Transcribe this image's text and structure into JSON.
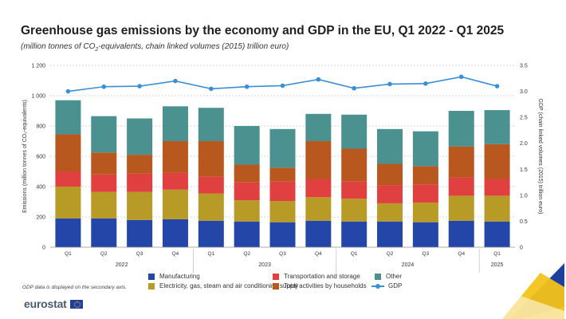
{
  "title": "Greenhouse gas emissions by the economy and GDP in the EU, Q1 2022 - Q1 2025",
  "subtitle_prefix": "(million tonnes of CO",
  "subtitle_sub": "2",
  "subtitle_suffix": "-equivalents, chain linked volumes (2015) trillion euro)",
  "note": "GDP data is displayed on the secondary axis.",
  "logo": "eurostat",
  "colors": {
    "Manufacturing": "#2446a8",
    "Electricity": "#b89a27",
    "Transportation": "#e04040",
    "Households": "#b8581f",
    "Other": "#4a9190",
    "GDP": "#3b8fd6"
  },
  "legend": {
    "manufacturing": "Manufacturing",
    "electricity": "Electricity, gas, steam and air conditioning supply",
    "transportation": "Transportation and storage",
    "households": "Total activities by households",
    "other": "Other",
    "gdp": "GDP"
  },
  "chart_data": {
    "type": "bar",
    "stacked": true,
    "categories": [
      "Q1",
      "Q2",
      "Q3",
      "Q4",
      "Q1",
      "Q2",
      "Q3",
      "Q4",
      "Q1",
      "Q2",
      "Q3",
      "Q4",
      "Q1"
    ],
    "years": [
      {
        "label": "2022",
        "from": 0,
        "to": 3
      },
      {
        "label": "2023",
        "from": 4,
        "to": 7
      },
      {
        "label": "2024",
        "from": 8,
        "to": 11
      },
      {
        "label": "2025",
        "from": 12,
        "to": 12
      }
    ],
    "series": [
      {
        "name": "Manufacturing",
        "values": [
          190,
          190,
          180,
          185,
          175,
          170,
          165,
          175,
          170,
          170,
          165,
          175,
          170
        ]
      },
      {
        "name": "Electricity, gas, steam and air conditioning supply",
        "values": [
          210,
          175,
          185,
          195,
          180,
          140,
          140,
          155,
          150,
          120,
          130,
          165,
          170
        ]
      },
      {
        "name": "Transportation and storage",
        "values": [
          100,
          115,
          120,
          110,
          110,
          120,
          130,
          120,
          115,
          120,
          120,
          120,
          110
        ]
      },
      {
        "name": "Total activities by households",
        "values": [
          245,
          145,
          125,
          210,
          235,
          115,
          90,
          250,
          215,
          140,
          120,
          205,
          230
        ]
      },
      {
        "name": "Other",
        "values": [
          225,
          240,
          240,
          230,
          220,
          255,
          255,
          180,
          225,
          230,
          230,
          235,
          225
        ]
      }
    ],
    "gdp": {
      "name": "GDP",
      "values": [
        3.0,
        3.09,
        3.1,
        3.2,
        3.05,
        3.09,
        3.11,
        3.23,
        3.06,
        3.14,
        3.15,
        3.28,
        3.1
      ]
    },
    "ylabel": "Emissions (million tonnes of CO₂-equivalents)",
    "y2label": "GDP (chain linked volumes (2015) trillion euro)",
    "ylim": [
      0,
      1200
    ],
    "yticks": [
      0,
      200,
      400,
      600,
      800,
      1000,
      1200
    ],
    "ytick_labels": [
      "0",
      "200",
      "400",
      "600",
      "800",
      "1 000",
      "1 200"
    ],
    "y2lim": [
      0,
      3.5
    ],
    "y2ticks": [
      0,
      0.5,
      1.0,
      1.5,
      2.0,
      2.5,
      3.0,
      3.5
    ],
    "y2tick_labels": [
      "0",
      "0.5",
      "1.0",
      "1.5",
      "2.0",
      "2.5",
      "3.0",
      "3.5"
    ],
    "grid": true,
    "legend_position": "bottom"
  }
}
